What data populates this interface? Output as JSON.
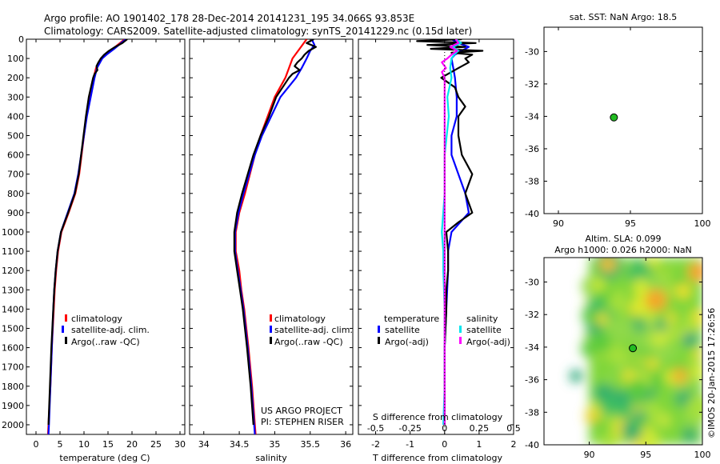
{
  "header": {
    "line1": "Argo profile: AO 1901402_178 28-Dec-2014 20141231_195 34.066S 93.853E",
    "line2": "Climatology: CARS2009. Satellite-adjusted climatology: synTS_20141229.nc (0.15d later)"
  },
  "credits": {
    "project": "US ARGO PROJECT",
    "pi": "PI: STEPHEN RISER",
    "imos": "©IMOS 20-Jan-2015 17:26:56"
  },
  "colors": {
    "climatology": "#ff0000",
    "satellite": "#0000ff",
    "argo": "#000000",
    "salinity_satellite": "#00e5ee",
    "salinity_argo": "#ff00ff",
    "float_marker": "#22bb22"
  },
  "chart_data": [
    {
      "id": "temperature",
      "type": "line",
      "xlabel": "temperature (deg C)",
      "xlim": [
        -2,
        31
      ],
      "ylim": [
        0,
        2050
      ],
      "y_reversed": true,
      "xticks": [
        0,
        5,
        10,
        15,
        20,
        25,
        30
      ],
      "yticks": [
        0,
        100,
        200,
        300,
        400,
        500,
        600,
        700,
        800,
        900,
        1000,
        1100,
        1200,
        1300,
        1400,
        1500,
        1600,
        1700,
        1800,
        1900,
        2000
      ],
      "legend": [
        "climatology",
        "satellite-adj. clim.",
        "Argo(..raw -QC)"
      ],
      "series": [
        {
          "name": "climatology",
          "color": "#ff0000",
          "depth": [
            0,
            50,
            80,
            100,
            150,
            200,
            300,
            400,
            500,
            600,
            700,
            800,
            900,
            1000,
            1100,
            1200,
            1300,
            1400,
            1600,
            1800,
            2000,
            2050
          ],
          "values": [
            18.5,
            16,
            14.5,
            13.5,
            12.5,
            12,
            11.2,
            10.5,
            10.0,
            9.5,
            9.0,
            8.2,
            6.8,
            5.3,
            4.6,
            4.2,
            3.9,
            3.7,
            3.3,
            3.0,
            2.6,
            2.5
          ]
        },
        {
          "name": "satellite-adj. clim.",
          "color": "#0000ff",
          "depth": [
            0,
            50,
            80,
            100,
            150,
            200,
            300,
            400,
            500,
            600,
            700,
            800,
            900,
            1000,
            1100,
            1200,
            1300,
            1400,
            1600,
            1800,
            2000,
            2050
          ],
          "values": [
            18.7,
            16.3,
            14.7,
            13.8,
            12.7,
            12.2,
            11.4,
            10.6,
            10.0,
            9.4,
            8.8,
            8.0,
            6.6,
            5.2,
            4.5,
            4.1,
            3.8,
            3.6,
            3.3,
            3.0,
            2.7,
            2.6
          ]
        },
        {
          "name": "Argo(..raw -QC)",
          "color": "#000000",
          "depth": [
            0,
            20,
            40,
            60,
            80,
            100,
            120,
            140,
            160,
            180,
            200,
            300,
            400,
            500,
            600,
            700,
            800,
            900,
            1000,
            1100,
            1200,
            1300,
            1400,
            1600,
            1800,
            2000
          ],
          "values": [
            19.0,
            18.0,
            16.5,
            15.2,
            14.2,
            13.5,
            13.0,
            12.6,
            12.8,
            12.2,
            11.9,
            11.0,
            10.4,
            9.9,
            9.4,
            8.9,
            8.1,
            6.7,
            5.2,
            4.5,
            4.1,
            3.8,
            3.6,
            3.2,
            2.9,
            2.6
          ]
        }
      ]
    },
    {
      "id": "salinity",
      "type": "line",
      "xlabel": "salinity",
      "xlim": [
        33.8,
        36.1
      ],
      "ylim": [
        0,
        2050
      ],
      "y_reversed": true,
      "xticks": [
        34,
        34.5,
        35,
        35.5,
        36
      ],
      "xticklabels": [
        "34",
        "34.5",
        "35",
        "35.5",
        "36"
      ],
      "legend": [
        "climatology",
        "satellite-adj. clim.",
        "Argo(..raw -QC)"
      ],
      "series": [
        {
          "name": "climatology",
          "color": "#ff0000",
          "depth": [
            0,
            50,
            100,
            150,
            200,
            300,
            400,
            500,
            600,
            700,
            800,
            900,
            1000,
            1100,
            1200,
            1300,
            1400,
            1600,
            1800,
            2000,
            2050
          ],
          "values": [
            35.45,
            35.35,
            35.25,
            35.2,
            35.15,
            35.0,
            34.9,
            34.8,
            34.72,
            34.65,
            34.58,
            34.5,
            34.45,
            34.45,
            34.5,
            34.53,
            34.57,
            34.63,
            34.68,
            34.72,
            34.73
          ]
        },
        {
          "name": "satellite-adj. clim.",
          "color": "#0000ff",
          "depth": [
            0,
            30,
            60,
            100,
            150,
            200,
            300,
            400,
            500,
            600,
            700,
            800,
            900,
            1000,
            1100,
            1200,
            1300,
            1400,
            1600,
            1800,
            2000,
            2050
          ],
          "values": [
            35.52,
            35.56,
            35.5,
            35.45,
            35.38,
            35.3,
            35.08,
            34.95,
            34.82,
            34.72,
            34.64,
            34.56,
            34.49,
            34.44,
            34.44,
            34.48,
            34.52,
            34.56,
            34.62,
            34.67,
            34.71,
            34.72
          ]
        },
        {
          "name": "Argo(..raw -QC)",
          "color": "#000000",
          "depth": [
            0,
            20,
            40,
            60,
            80,
            100,
            120,
            140,
            160,
            180,
            200,
            300,
            400,
            500,
            600,
            700,
            800,
            900,
            1000,
            1100,
            1200,
            1300,
            1400,
            1600,
            1800,
            2000
          ],
          "values": [
            35.55,
            35.45,
            35.58,
            35.48,
            35.42,
            35.38,
            35.32,
            35.28,
            35.35,
            35.25,
            35.2,
            35.02,
            34.92,
            34.8,
            34.7,
            34.62,
            34.54,
            34.47,
            34.43,
            34.43,
            34.47,
            34.51,
            34.55,
            34.61,
            34.66,
            34.7
          ]
        }
      ]
    },
    {
      "id": "difference",
      "type": "line",
      "xlabel": "T difference from climatology",
      "x2label": "S difference from climatology",
      "xlim": [
        -2.5,
        2
      ],
      "s_xlim": [
        -0.625,
        0.5
      ],
      "ylim": [
        0,
        2050
      ],
      "y_reversed": true,
      "xticks": [
        -2,
        -1,
        0,
        1,
        2
      ],
      "s_xticks": [
        -0.5,
        -0.25,
        0,
        0.25,
        0.5
      ],
      "s_xticklabels": [
        "-0.5",
        "-0.25",
        "0",
        "0.25",
        "0.5"
      ],
      "legend_titles": [
        "temperature",
        "salinity"
      ],
      "legend": [
        "satellite",
        "Argo(-adj)",
        "satellite",
        "Argo(-adj)"
      ],
      "series": [
        {
          "name": "satellite",
          "group": "temperature",
          "color": "#0000ff",
          "axis": "T",
          "depth": [
            0,
            20,
            40,
            60,
            80,
            100,
            150,
            200,
            300,
            400,
            500,
            600,
            700,
            800,
            900,
            1000,
            1100,
            1200,
            1400,
            1600,
            1800,
            2000
          ],
          "values": [
            0.2,
            0.4,
            0.7,
            0.5,
            0.3,
            0.2,
            0.25,
            0.3,
            0.35,
            0.35,
            0.2,
            0.2,
            0.4,
            0.6,
            0.7,
            0.2,
            0.1,
            0.1,
            0.05,
            0.0,
            0.0,
            0.0
          ]
        },
        {
          "name": "Argo(-adj)",
          "group": "temperature",
          "color": "#000000",
          "axis": "T",
          "depth": [
            0,
            10,
            20,
            30,
            40,
            50,
            60,
            70,
            80,
            100,
            120,
            150,
            200,
            250,
            300,
            350,
            400,
            500,
            600,
            700,
            800,
            900,
            950,
            1000,
            1100,
            1200,
            1300,
            1400,
            1600,
            1800,
            2000
          ],
          "values": [
            0.5,
            -0.8,
            0.9,
            -0.5,
            0.6,
            -0.4,
            1.1,
            0.2,
            0.8,
            0.6,
            0.7,
            0.4,
            -0.1,
            0.3,
            0.4,
            0.6,
            0.4,
            0.4,
            0.5,
            0.8,
            0.6,
            0.8,
            0.4,
            0.05,
            0.1,
            0.1,
            0.05,
            0.05,
            0.0,
            0.0,
            0.0
          ]
        },
        {
          "name": "satellite",
          "group": "salinity",
          "color": "#00e5ee",
          "axis": "S",
          "depth": [
            0,
            20,
            40,
            60,
            80,
            100,
            150,
            200,
            300,
            400,
            600,
            800,
            1000,
            1100,
            1200,
            1400,
            1600,
            1800,
            2000
          ],
          "values": [
            0.08,
            0.12,
            0.06,
            0.1,
            0.07,
            0.05,
            0.04,
            0.05,
            0.02,
            0.03,
            0.0,
            0.0,
            -0.02,
            -0.01,
            -0.01,
            0.0,
            0.0,
            0.0,
            -0.01
          ]
        },
        {
          "name": "Argo(-adj)",
          "group": "salinity",
          "color": "#ff00ff",
          "axis": "S",
          "depth": [
            0,
            20,
            40,
            60,
            80,
            100,
            120,
            150,
            170,
            200,
            300,
            600,
            1000,
            1200,
            1400,
            1600,
            1800,
            2000
          ],
          "values": [
            0.08,
            0.1,
            0.04,
            0.09,
            0.05,
            0.02,
            -0.02,
            0.01,
            -0.02,
            0.0,
            0.0,
            0.0,
            0.0,
            0.0,
            0.0,
            0.0,
            0.0,
            0.0
          ]
        }
      ]
    },
    {
      "id": "sst_map",
      "type": "scatter",
      "title": "sat. SST: NaN Argo: 18.5",
      "xlim": [
        89,
        100
      ],
      "ylim": [
        -40,
        -28.5
      ],
      "xticks": [
        90,
        95,
        100
      ],
      "yticks": [
        -30,
        -32,
        -34,
        -36,
        -38,
        -40
      ],
      "points": [
        {
          "x": 93.853,
          "y": -34.066
        }
      ]
    },
    {
      "id": "sla_map",
      "type": "heatmap",
      "title": "Altim. SLA: 0.099",
      "subtitle": "Argo h1000: 0.026 h2000: NaN",
      "xlim": [
        86,
        100
      ],
      "ylim": [
        -40,
        -28.5
      ],
      "xticks": [
        90,
        95,
        100
      ],
      "yticks": [
        -30,
        -32,
        -34,
        -36,
        -38,
        -40
      ],
      "data_xlim": [
        90,
        100
      ],
      "points": [
        {
          "x": 93.853,
          "y": -34.066
        }
      ]
    }
  ]
}
